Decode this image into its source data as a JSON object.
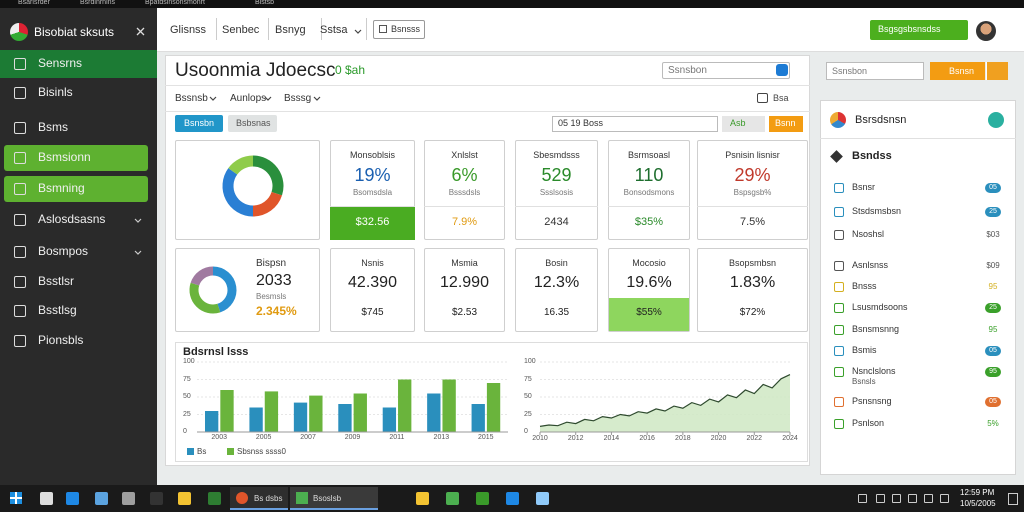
{
  "browser_tabs": [
    "Bsarlsrder",
    "Bsrdinrnlns",
    "Bpatdslnsonsmonrt",
    "Blstsb"
  ],
  "sidebar": {
    "title": "Bisobiat sksuts",
    "items": [
      {
        "label": "Sensrns",
        "state": "dark"
      },
      {
        "label": "Bisinls"
      },
      {
        "label": "Bsms"
      },
      {
        "label": "Bsmsionn",
        "state": "bright"
      },
      {
        "label": "Bsmning",
        "state": "bright"
      },
      {
        "label": "Aslosdsasns",
        "expandable": true
      },
      {
        "label": "Bosmpos",
        "expandable": true
      },
      {
        "label": "Bsstlsr"
      },
      {
        "label": "Bsstlsg"
      },
      {
        "label": "Pionsbls"
      }
    ]
  },
  "header": {
    "tabs": [
      "Glisnss",
      "Senbec",
      "Bsnyg",
      "Sstsa"
    ],
    "button": "Bsnsss",
    "cta": "Bsgsgsbsnsdss"
  },
  "main": {
    "title": "Usoonmia Jdoecsc",
    "badge": "0 $ah",
    "search": "Ssnsbon",
    "filters": [
      "Bssnsb",
      "Aunlops",
      "Bsssg"
    ],
    "toolbar": "Bsa",
    "actions": [
      "Bsnsbn",
      "Bsbsnas"
    ],
    "date": "05 19 Boss",
    "date_buttons": [
      "Asb",
      "Bsnn"
    ]
  },
  "cards_top": {
    "donut": {
      "values": [
        30,
        20,
        35,
        15
      ],
      "colors": [
        "#2a8f3c",
        "#e0552a",
        "#2a7fd4",
        "#8fcc4a"
      ]
    },
    "stats": [
      {
        "title": "Monsoblsis",
        "value": "19%",
        "sub": "Bsomsdsla",
        "foot": "$32.56",
        "value_color": "#1a5fb0",
        "foot_color": "#ffffff",
        "foot_bg": "#4aac22"
      },
      {
        "title": "Xnlslst",
        "value": "6%",
        "sub": "Bsssdsls",
        "foot": "7.9%",
        "value_color": "#3a9a2a",
        "foot_color": "#e09a10"
      },
      {
        "title": "Sbesmdsss",
        "value": "529",
        "sub": "Ssslsosis",
        "foot": "2434",
        "value_color": "#2a8a2a",
        "foot_color": "#333333"
      },
      {
        "title": "Bsrmsoasl",
        "value": "110",
        "sub": "Bonsodsmons",
        "foot": "$35%",
        "value_color": "#1e6e2e",
        "foot_color": "#2a8a2a"
      },
      {
        "title": "Psnisin lisnisr",
        "value": "29%",
        "sub": "Bspsgsb%",
        "foot": "7.5%",
        "value_color": "#c0392b",
        "foot_color": "#333333"
      }
    ]
  },
  "cards_bottom": {
    "donut": {
      "values": [
        45,
        35,
        20
      ],
      "colors": [
        "#2a8fd0",
        "#6ab43c",
        "#a07aa0"
      ]
    },
    "title": "Bispsn",
    "value": "2033",
    "sub": "Besmsls",
    "foot": "2.345%",
    "stats": [
      {
        "title": "Nsnis",
        "value": "42.390",
        "foot": "$745"
      },
      {
        "title": "Msmia",
        "value": "12.990",
        "foot": "$2.53"
      },
      {
        "title": "Bosin",
        "value": "12.3%",
        "foot": "16.35"
      },
      {
        "title": "Mocosio",
        "value": "19.6%",
        "foot": "$55%",
        "foot_bg": "#8ed65e"
      },
      {
        "title": "Bsopsmbsn",
        "value": "1.83%",
        "foot": "$72%"
      }
    ]
  },
  "chart_data": [
    {
      "type": "bar",
      "title": "Bdsrnsl lsss",
      "categories": [
        "2003",
        "2005",
        "2007",
        "2009",
        "2011",
        "2013",
        "2015"
      ],
      "series": [
        {
          "name": "Bs",
          "color": "#2a8fbd",
          "values": [
            30,
            35,
            42,
            40,
            35,
            55,
            40
          ]
        },
        {
          "name": "Sbsnss ssss0",
          "color": "#6ab43c",
          "values": [
            60,
            58,
            52,
            55,
            75,
            75,
            70
          ]
        }
      ],
      "ylim": [
        0,
        100
      ],
      "yticks": [
        0,
        25,
        50,
        75,
        100
      ],
      "grid": true
    },
    {
      "type": "line",
      "x": [
        2010,
        2010.5,
        2011,
        2011.5,
        2012,
        2012.5,
        2013,
        2013.5,
        2014,
        2014.5,
        2015,
        2015.5,
        2016,
        2016.5,
        2017,
        2017.5,
        2018,
        2018.5,
        2019,
        2019.5,
        2020,
        2020.5,
        2021,
        2021.5,
        2022,
        2022.5,
        2023,
        2023.5,
        2024
      ],
      "values": [
        8,
        10,
        9,
        14,
        12,
        18,
        16,
        22,
        20,
        25,
        23,
        29,
        27,
        33,
        30,
        37,
        34,
        42,
        38,
        47,
        43,
        53,
        49,
        60,
        55,
        68,
        63,
        76,
        82
      ],
      "color": "#2e4a2e",
      "fill": "#cfe8c3",
      "xlim": [
        2010,
        2024
      ],
      "xticks": [
        2010,
        2012,
        2014,
        2016,
        2018,
        2020,
        2022,
        2024
      ],
      "ylim": [
        0,
        100
      ],
      "yticks": [
        0,
        25,
        50,
        75,
        100
      ],
      "grid": true
    }
  ],
  "right": {
    "search": "Ssnsbon",
    "button": "Bsnsn",
    "panel_title": "Bsrsdsnsn",
    "section": "Bsndss",
    "items": [
      {
        "label": "Bsnsr",
        "badge": "05",
        "color": "#2a8fbd",
        "filled": true
      },
      {
        "label": "Stsdsmsbsn",
        "badge": "25",
        "color": "#2a8fbd",
        "filled": true
      },
      {
        "label": "Nsoshsl",
        "badge": "$03",
        "color": "#555555"
      },
      {
        "label": "Asnlsnss",
        "badge": "$09",
        "color": "#555555"
      },
      {
        "label": "Bnsss",
        "badge": "95",
        "color": "#d4b020"
      },
      {
        "label": "Lsusmdsoons",
        "badge": "25",
        "color": "#3aa02a",
        "filled": true
      },
      {
        "label": "Bsnsmsnng",
        "badge": "95",
        "color": "#3aa02a"
      },
      {
        "label": "Bsmis",
        "badge": "05",
        "color": "#2a8fbd",
        "filled": true
      },
      {
        "label": "Nsnclslons",
        "label2": "Bsnsls",
        "badge": "95",
        "color": "#3aa02a",
        "filled": true
      },
      {
        "label": "Psnsnsng",
        "badge": "05",
        "color": "#e07030",
        "filled": true
      },
      {
        "label": "Psnlson",
        "badge": "5%",
        "color": "#3aa02a"
      }
    ]
  },
  "taskbar": {
    "tabs": [
      "Bs dsbs",
      "Bsoslsb"
    ],
    "time": "12:59 PM",
    "date": "10/5/2005"
  }
}
